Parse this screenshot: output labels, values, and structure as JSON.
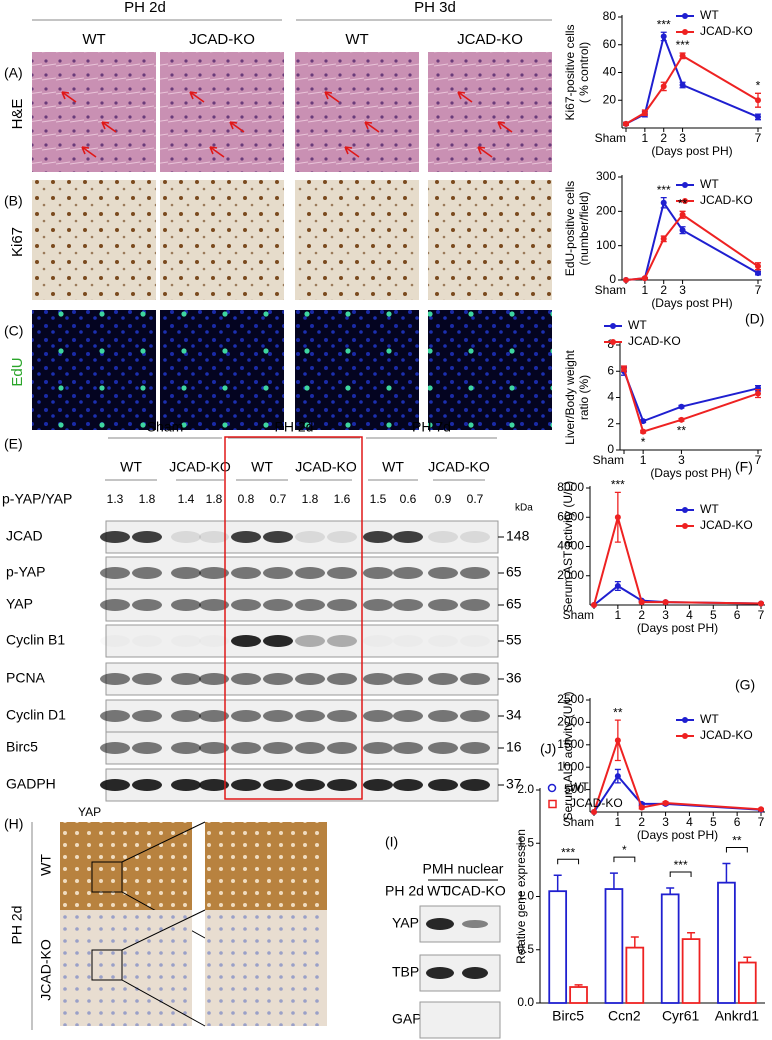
{
  "histology": {
    "panels": [
      "(A)",
      "(B)",
      "(C)"
    ],
    "groups": [
      "PH 2d",
      "PH 3d"
    ],
    "columns": [
      "WT",
      "JCAD-KO",
      "WT",
      "JCAD-KO"
    ],
    "rows": [
      "H&E",
      "Ki67",
      "EdU"
    ]
  },
  "western": {
    "panel": "(E)",
    "groups": [
      "Sham",
      "PH 2d",
      "PH 7d"
    ],
    "columns": [
      "WT",
      "JCAD-KO",
      "WT",
      "JCAD-KO",
      "WT",
      "JCAD-KO"
    ],
    "ratio_label": "p-YAP/YAP",
    "ratios": [
      1.3,
      1.8,
      1.4,
      1.8,
      0.8,
      0.7,
      1.8,
      1.6,
      1.5,
      0.6,
      0.9,
      0.7
    ],
    "unit": "kDa",
    "rows": [
      {
        "name": "JCAD",
        "mw": 148
      },
      {
        "name": "p-YAP",
        "mw": 65
      },
      {
        "name": "YAP",
        "mw": 65
      },
      {
        "name": "Cyclin B1",
        "mw": 55
      },
      {
        "name": "PCNA",
        "mw": 36
      },
      {
        "name": "Cyclin D1",
        "mw": 34
      },
      {
        "name": "Birc5",
        "mw": 16
      },
      {
        "name": "GADPH",
        "mw": 37
      }
    ]
  },
  "ihc": {
    "panel": "(H)",
    "stain": "YAP",
    "group": "PH 2d",
    "rows": [
      "WT",
      "JCAD-KO"
    ]
  },
  "nuclear_blot": {
    "panel": "(I)",
    "title": "PMH nuclear",
    "group": "PH 2d",
    "columns": [
      "WT",
      "JCAD-KO"
    ],
    "rows": [
      "YAP",
      "TBP",
      "GAPDH"
    ]
  },
  "chart_data": [
    {
      "type": "line",
      "y_label": [
        "Ki67-positive cells",
        "( % control)"
      ],
      "x_label": "(Days post PH)",
      "x": [
        0,
        1,
        2,
        3,
        7
      ],
      "xlim": [
        0,
        7
      ],
      "xticks": [
        {
          "value": 0,
          "label": "Sham"
        },
        1,
        2,
        3,
        7
      ],
      "ylim": [
        0,
        80
      ],
      "yticks": [
        20,
        40,
        60,
        80
      ],
      "series": [
        {
          "name": "WT",
          "color": "#1f1fd0",
          "values": [
            3,
            10,
            66,
            31,
            8
          ],
          "errors": [
            1,
            2,
            3,
            2,
            2
          ]
        },
        {
          "name": "JCAD-KO",
          "color": "#ee2222",
          "values": [
            3,
            11,
            30,
            52,
            20
          ],
          "errors": [
            1,
            2,
            3,
            2,
            5
          ]
        }
      ],
      "annotations": [
        {
          "x": 2,
          "text": "***"
        },
        {
          "x": 3,
          "text": "***"
        },
        {
          "x": 7,
          "text": "*"
        }
      ]
    },
    {
      "type": "line",
      "y_label": [
        "EdU-positive cells",
        "(number/field)"
      ],
      "x_label": "(Days post PH)",
      "x": [
        0,
        1,
        2,
        3,
        7
      ],
      "xlim": [
        0,
        7
      ],
      "xticks": [
        {
          "value": 0,
          "label": "Sham"
        },
        1,
        2,
        3,
        7
      ],
      "ylim": [
        0,
        300
      ],
      "yticks": [
        0,
        100,
        200,
        300
      ],
      "series": [
        {
          "name": "WT",
          "color": "#1f1fd0",
          "values": [
            0,
            5,
            225,
            145,
            20
          ],
          "errors": [
            0,
            2,
            15,
            10,
            5
          ]
        },
        {
          "name": "JCAD-KO",
          "color": "#ee2222",
          "values": [
            0,
            5,
            120,
            190,
            40
          ],
          "errors": [
            0,
            2,
            8,
            10,
            10
          ]
        }
      ],
      "annotations": [
        {
          "x": 2,
          "text": "***"
        },
        {
          "x": 3,
          "text": "**"
        }
      ]
    },
    {
      "type": "line",
      "panel": "(D)",
      "y_label": [
        "Liver/Body weight",
        "ratio (%)"
      ],
      "x_label": "(Days post PH)",
      "x": [
        0,
        1,
        3,
        7
      ],
      "xlim": [
        0,
        7
      ],
      "xticks": [
        {
          "value": 0,
          "label": "Sham"
        },
        1,
        3,
        7
      ],
      "ylim": [
        0,
        8
      ],
      "yticks": [
        0,
        2,
        4,
        6,
        8
      ],
      "series": [
        {
          "name": "WT",
          "color": "#1f1fd0",
          "values": [
            6.0,
            2.2,
            3.3,
            4.7
          ],
          "errors": [
            0.3,
            0.1,
            0.1,
            0.2
          ]
        },
        {
          "name": "JCAD-KO",
          "color": "#ee2222",
          "values": [
            6.2,
            1.4,
            2.3,
            4.3
          ],
          "errors": [
            0.2,
            0.1,
            0.1,
            0.3
          ]
        }
      ],
      "annotations": [
        {
          "x": 1,
          "text": "*",
          "below": true
        },
        {
          "x": 3,
          "text": "**",
          "below": true
        }
      ]
    },
    {
      "type": "line",
      "panel": "(F)",
      "y_label": [
        "Serum AST activity (U/L)"
      ],
      "x_label": "(Days post PH)",
      "x": [
        0,
        1,
        2,
        3,
        7
      ],
      "xlim": [
        0,
        7
      ],
      "xticks": [
        {
          "value": 0,
          "label": "Sham"
        },
        1,
        2,
        3,
        4,
        5,
        6,
        7
      ],
      "ylim": [
        0,
        8000
      ],
      "yticks": [
        2000,
        4000,
        6000,
        8000
      ],
      "series": [
        {
          "name": "WT",
          "color": "#1f1fd0",
          "values": [
            0,
            1300,
            300,
            200,
            100
          ],
          "errors": [
            0,
            300,
            50,
            50,
            50
          ]
        },
        {
          "name": "JCAD-KO",
          "color": "#ee2222",
          "values": [
            0,
            6000,
            200,
            200,
            100
          ],
          "errors": [
            0,
            1700,
            50,
            50,
            50
          ]
        }
      ],
      "annotations": [
        {
          "x": 1,
          "text": "***"
        }
      ]
    },
    {
      "type": "line",
      "panel": "(G)",
      "y_label": [
        "Serum ALT activity (U/L)"
      ],
      "x_label": "(Days post PH)",
      "x": [
        0,
        1,
        2,
        3,
        7
      ],
      "xlim": [
        0,
        7
      ],
      "xticks": [
        {
          "value": 0,
          "label": "Sham"
        },
        1,
        2,
        3,
        4,
        5,
        6,
        7
      ],
      "ylim": [
        0,
        2500
      ],
      "yticks": [
        500,
        1000,
        1500,
        2000,
        2500
      ],
      "series": [
        {
          "name": "WT",
          "color": "#1f1fd0",
          "values": [
            0,
            800,
            180,
            180,
            50
          ],
          "errors": [
            0,
            150,
            30,
            30,
            20
          ]
        },
        {
          "name": "JCAD-KO",
          "color": "#ee2222",
          "values": [
            0,
            1600,
            100,
            200,
            60
          ],
          "errors": [
            0,
            450,
            30,
            30,
            20
          ]
        }
      ],
      "annotations": [
        {
          "x": 1,
          "text": "**"
        }
      ]
    },
    {
      "type": "bar",
      "panel": "(J)",
      "y_label": [
        "Relative gene expression"
      ],
      "categories": [
        "Birc5",
        "Ccn2",
        "Cyr61",
        "Ankrd1"
      ],
      "ylim": [
        0,
        2
      ],
      "yticks": [
        {
          "value": 0,
          "label": "0.0"
        },
        {
          "value": 0.5,
          "label": "0.5"
        },
        {
          "value": 1,
          "label": "1.0"
        },
        {
          "value": 1.5,
          "label": "1.5"
        },
        {
          "value": 2,
          "label": "2.0"
        }
      ],
      "series": [
        {
          "name": "WT",
          "color": "#1f1fd0",
          "values": [
            1.05,
            1.07,
            1.02,
            1.13
          ],
          "errors": [
            0.15,
            0.15,
            0.06,
            0.18
          ]
        },
        {
          "name": "JCAD-KO",
          "color": "#ee2222",
          "values": [
            0.15,
            0.52,
            0.6,
            0.38
          ],
          "errors": [
            0.02,
            0.1,
            0.06,
            0.05
          ]
        }
      ],
      "significance": [
        "***",
        "*",
        "***",
        "**"
      ]
    }
  ]
}
